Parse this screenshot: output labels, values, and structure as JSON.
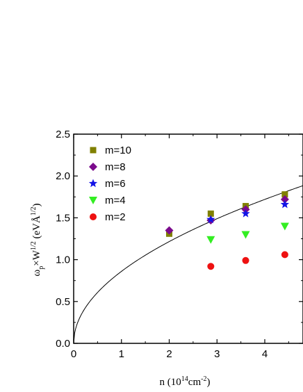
{
  "chart_data": {
    "type": "scatter",
    "xlabel": {
      "base": "n (10",
      "sup1": "14",
      "mid": "cm",
      "sup2": "-2",
      "end": ")"
    },
    "ylabel": {
      "omega": "ω",
      "sub": "p",
      "times": "×W",
      "sup": "1/2",
      "unit": " (eVÅ",
      "unitsup": "1/2",
      "end": ")"
    },
    "xlim": [
      0,
      4.8
    ],
    "ylim": [
      0,
      2.5
    ],
    "xticks": [
      0,
      1,
      2,
      3,
      4
    ],
    "xtick_labels": [
      "0",
      "1",
      "2",
      "3",
      "4"
    ],
    "yticks": [
      0.0,
      0.5,
      1.0,
      1.5,
      2.0,
      2.5
    ],
    "ytick_labels": [
      "0.0",
      "0.5",
      "1.0",
      "1.5",
      "2.0",
      "2.5"
    ],
    "grid": false,
    "legend_position": "top-left",
    "series": [
      {
        "name": "m=10",
        "marker": "square",
        "color": "#808000",
        "x": [
          2.0,
          2.87,
          3.6,
          4.42
        ],
        "y": [
          1.31,
          1.55,
          1.64,
          1.78
        ]
      },
      {
        "name": "m=8",
        "marker": "diamond",
        "color": "#7b0a8c",
        "x": [
          2.0,
          2.87,
          3.6,
          4.42
        ],
        "y": [
          1.35,
          1.47,
          1.6,
          1.72
        ]
      },
      {
        "name": "m=6",
        "marker": "star",
        "color": "#1414e6",
        "x": [
          2.87,
          3.6,
          4.42
        ],
        "y": [
          1.48,
          1.55,
          1.66
        ]
      },
      {
        "name": "m=4",
        "marker": "triangle-down",
        "color": "#33ee22",
        "x": [
          2.87,
          3.6,
          4.42
        ],
        "y": [
          1.24,
          1.3,
          1.4
        ]
      },
      {
        "name": "m=2",
        "marker": "circle",
        "color": "#ee1111",
        "x": [
          2.87,
          3.6,
          4.42
        ],
        "y": [
          0.92,
          0.99,
          1.06
        ]
      }
    ],
    "curve": {
      "type": "sqrt",
      "coefficient": 0.86,
      "color": "#000000"
    }
  }
}
